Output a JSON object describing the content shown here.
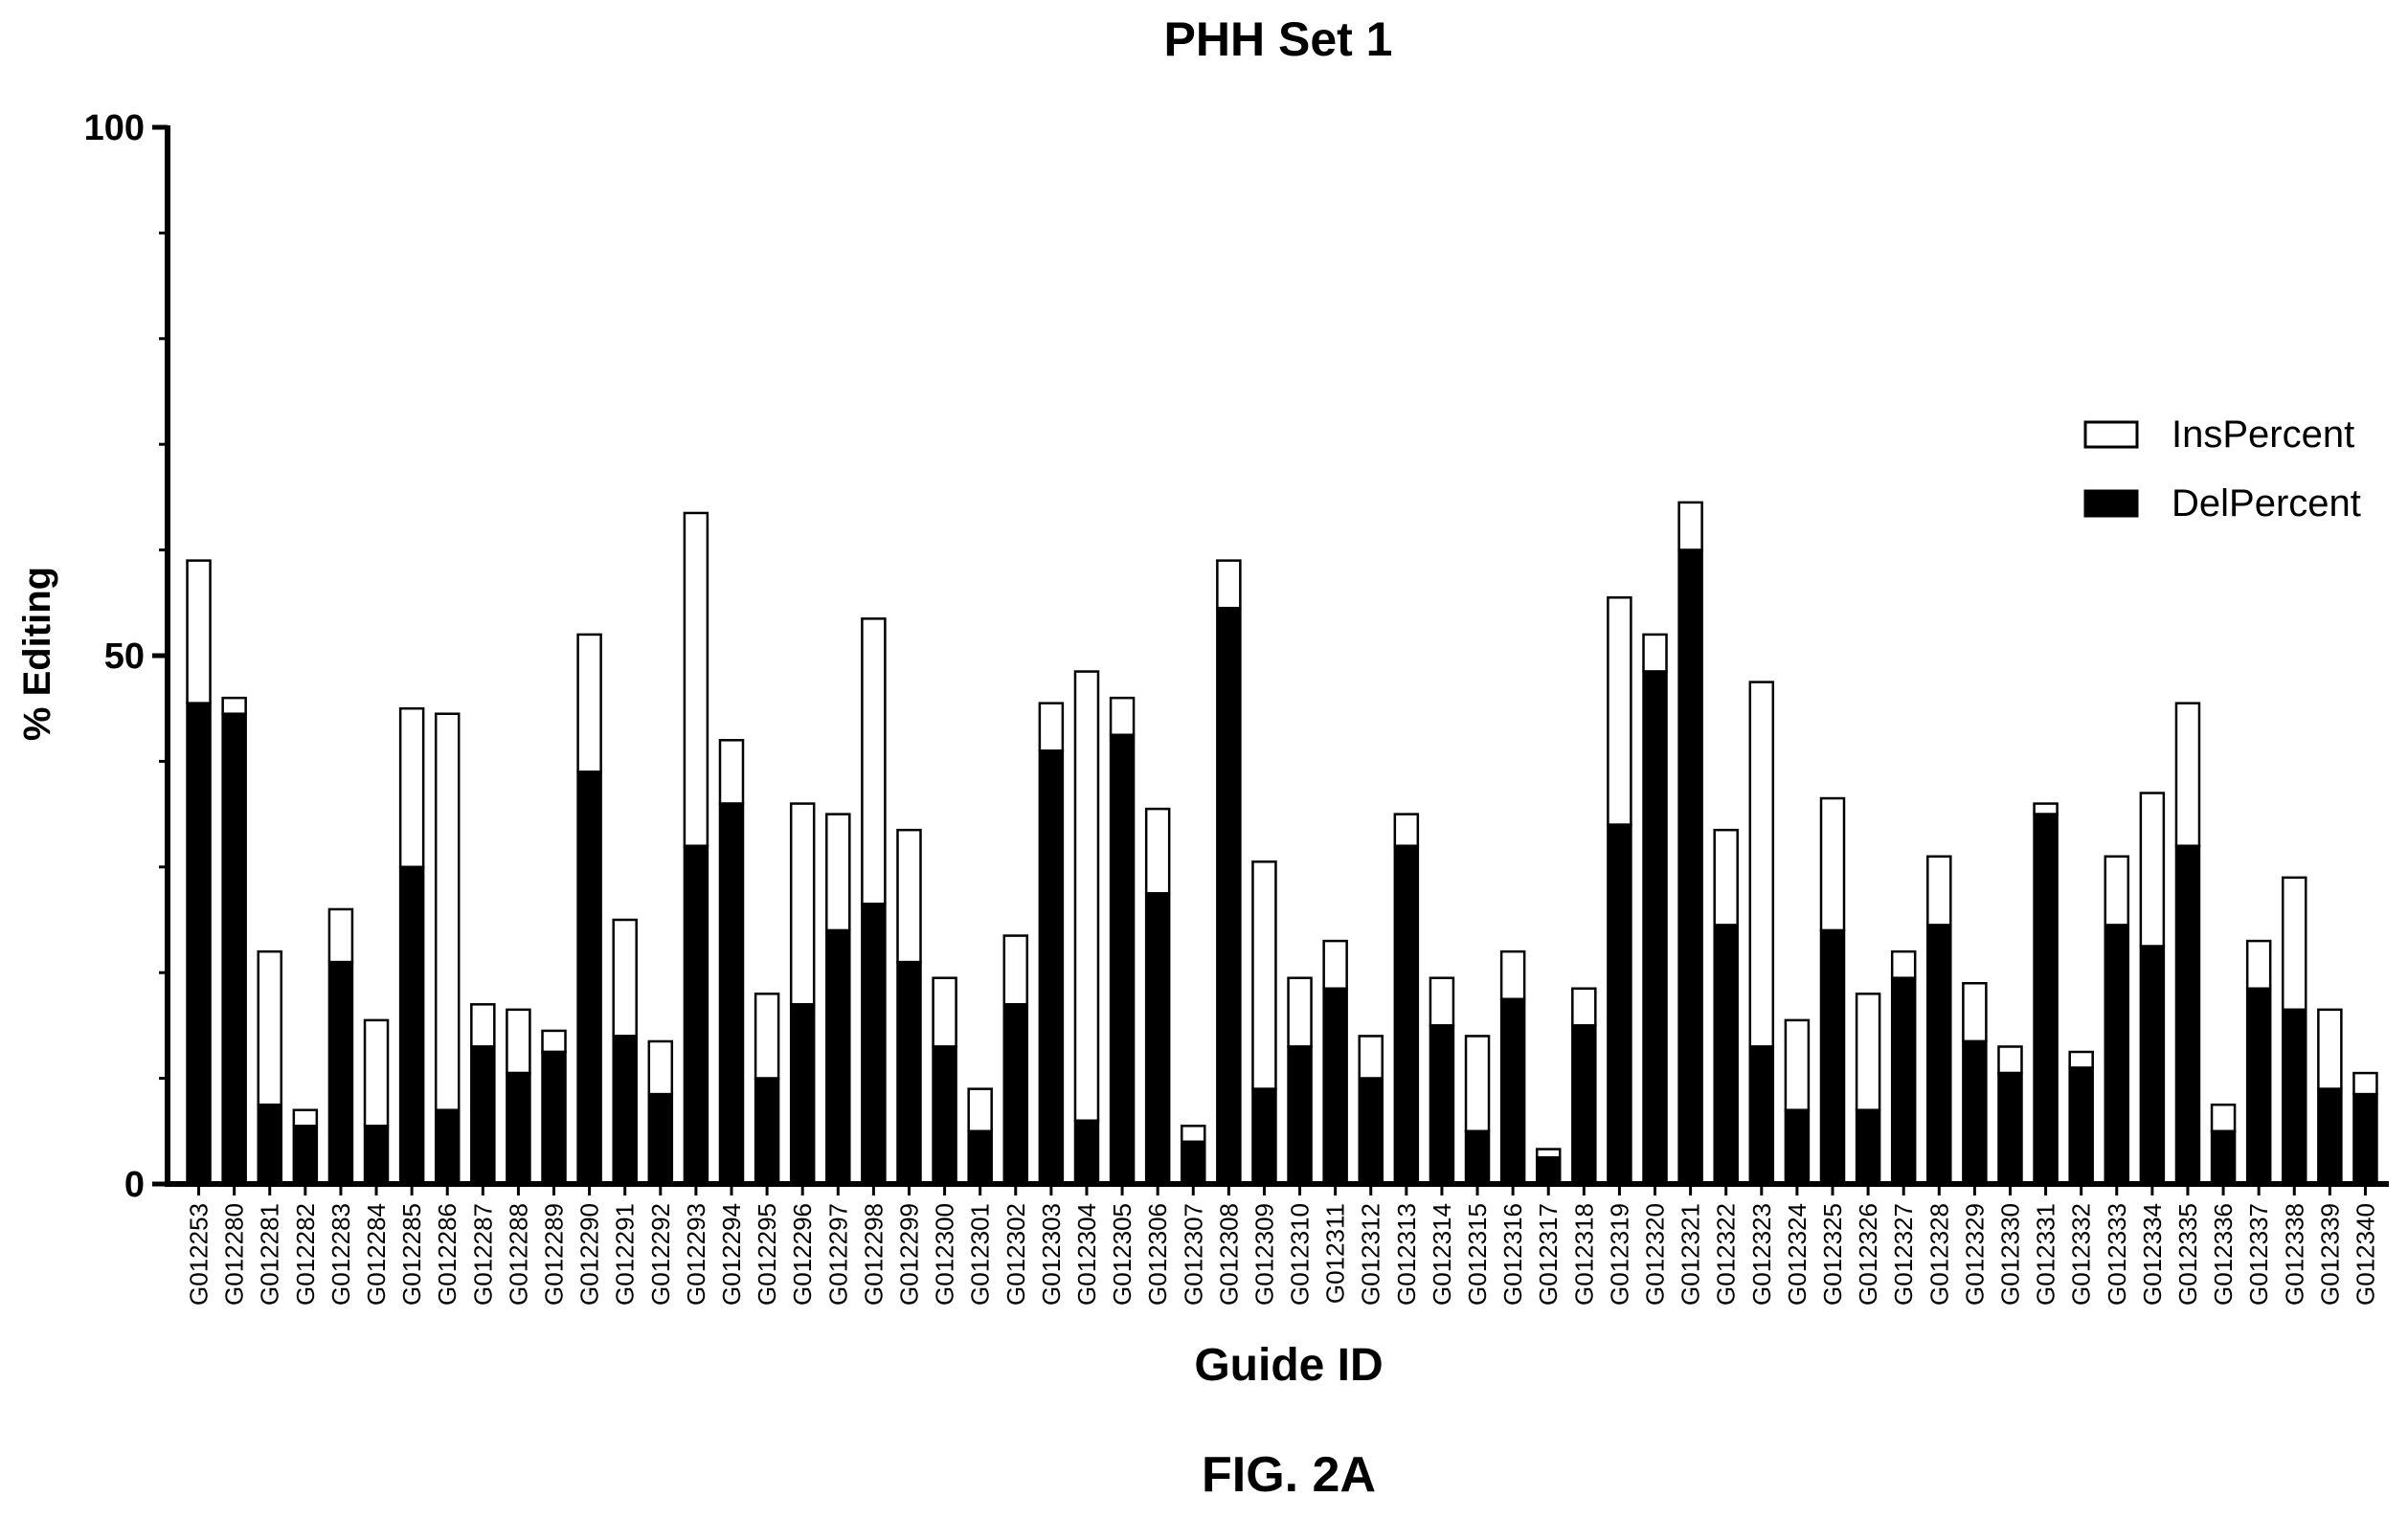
{
  "chart_data": {
    "type": "bar",
    "stacked": true,
    "title": "PHH Set 1",
    "xlabel": "Guide ID",
    "ylabel": "% Editing",
    "ylim": [
      0,
      100
    ],
    "yticks": [
      "0",
      "50",
      "100"
    ],
    "legend_position": "right",
    "grid": false,
    "categories": [
      "G012253",
      "G012280",
      "G012281",
      "G012282",
      "G012283",
      "G012284",
      "G012285",
      "G012286",
      "G012287",
      "G012288",
      "G012289",
      "G012290",
      "G012291",
      "G012292",
      "G012293",
      "G012294",
      "G012295",
      "G012296",
      "G012297",
      "G012298",
      "G012299",
      "G012300",
      "G012301",
      "G012302",
      "G012303",
      "G012304",
      "G012305",
      "G012306",
      "G012307",
      "G012308",
      "G012309",
      "G012310",
      "G012311",
      "G012312",
      "G012313",
      "G012314",
      "G012315",
      "G012316",
      "G012317",
      "G012318",
      "G012319",
      "G012320",
      "G012321",
      "G012322",
      "G012323",
      "G012324",
      "G012325",
      "G012326",
      "G012327",
      "G012328",
      "G012329",
      "G012330",
      "G012331",
      "G012332",
      "G012333",
      "G012334",
      "G012335",
      "G012336",
      "G012337",
      "G012338",
      "G012339",
      "G012340"
    ],
    "series": [
      {
        "name": "DelPercent",
        "color": "#000000",
        "values": [
          45.5,
          44.5,
          7.5,
          5.5,
          21,
          5.5,
          30,
          7,
          13,
          10.5,
          12.5,
          39,
          14,
          8.5,
          32,
          36,
          10,
          17,
          24,
          26.5,
          21,
          13,
          5,
          17,
          41,
          6,
          42.5,
          27.5,
          4,
          54.5,
          9,
          13,
          18.5,
          10,
          32,
          15,
          5,
          17.5,
          2.5,
          15,
          34,
          48.5,
          60,
          24.5,
          13,
          7,
          24,
          7,
          19.5,
          24.5,
          13.5,
          10.5,
          35,
          11,
          24.5,
          22.5,
          32,
          5,
          18.5,
          16.5,
          9,
          8.5
        ]
      },
      {
        "name": "InsPercent",
        "color": "#ffffff",
        "values": [
          13.5,
          1.5,
          14.5,
          1.5,
          5,
          10,
          15,
          37.5,
          4,
          6,
          2,
          13,
          11,
          5,
          31.5,
          6,
          8,
          19,
          11,
          27,
          12.5,
          6.5,
          4,
          6.5,
          4.5,
          42.5,
          3.5,
          8,
          1.5,
          4.5,
          21.5,
          6.5,
          4.5,
          4,
          3,
          4.5,
          9,
          4.5,
          0.8,
          3.5,
          21.5,
          3.5,
          4.5,
          9,
          34.5,
          8.5,
          12.5,
          11,
          2.5,
          6.5,
          5.5,
          2.5,
          1,
          1.5,
          6.5,
          14.5,
          13.5,
          2.5,
          4.5,
          12.5,
          7.5,
          2
        ]
      }
    ]
  },
  "figure_label": "FIG. 2A"
}
